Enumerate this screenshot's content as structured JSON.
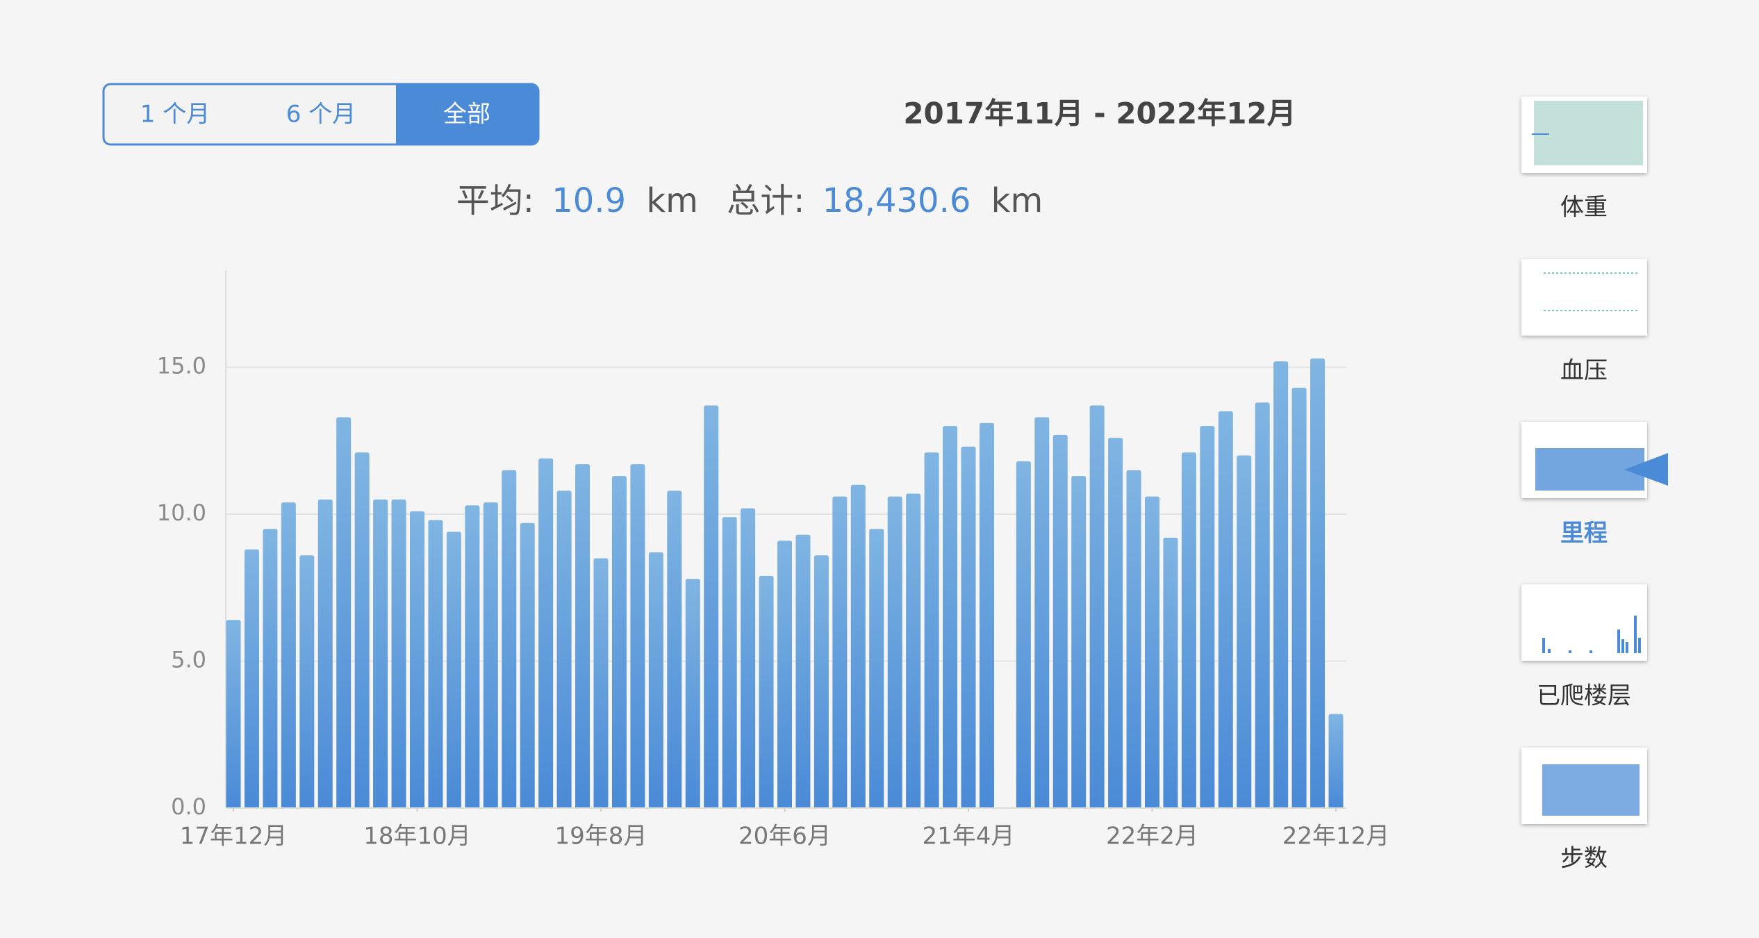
{
  "segmented_control": {
    "options": [
      "1 个月",
      "6 个月",
      "全部"
    ],
    "selected": "全部"
  },
  "date_range": "2017年11月 - 2022年12月",
  "stats": {
    "average_label": "平均:",
    "average": "10.9",
    "total_label": "总计:",
    "total": "18,430.6",
    "unit": "km"
  },
  "sidebar": {
    "items": [
      "体重",
      "血压",
      "里程",
      "已爬楼层",
      "步数"
    ],
    "selected": "里程"
  },
  "chart_data": {
    "type": "bar",
    "categories": [
      "17年12月",
      null,
      null,
      null,
      null,
      null,
      null,
      null,
      null,
      null,
      "18年10月",
      null,
      null,
      null,
      null,
      null,
      null,
      null,
      null,
      null,
      "19年8月",
      null,
      null,
      null,
      null,
      null,
      null,
      null,
      null,
      null,
      "20年6月",
      null,
      null,
      null,
      null,
      null,
      null,
      null,
      null,
      null,
      "21年4月",
      null,
      null,
      null,
      null,
      null,
      null,
      null,
      null,
      null,
      "22年2月",
      null,
      null,
      null,
      null,
      null,
      null,
      null,
      null,
      null,
      "22年12月"
    ],
    "values": [
      6.4,
      8.8,
      9.5,
      10.4,
      8.6,
      10.5,
      13.3,
      12.1,
      10.5,
      10.5,
      10.1,
      9.8,
      9.4,
      10.3,
      10.4,
      11.5,
      9.7,
      11.9,
      10.8,
      11.7,
      8.5,
      11.3,
      11.7,
      8.7,
      10.8,
      7.8,
      13.7,
      9.9,
      10.2,
      7.9,
      9.1,
      9.3,
      8.6,
      10.6,
      11.0,
      9.5,
      10.6,
      10.7,
      12.1,
      13.0,
      12.3,
      13.1,
      null,
      11.8,
      13.3,
      12.7,
      11.3,
      13.7,
      12.6,
      11.5,
      10.6,
      9.2,
      12.1,
      13.0,
      13.5,
      12.0,
      13.8,
      15.2,
      14.3,
      15.3,
      3.2
    ],
    "color": "#4a8ad6",
    "ylim": [
      0,
      18.3
    ],
    "yticks": [
      {
        "value": 0,
        "label": "0.0"
      },
      {
        "value": 5,
        "label": "5.0"
      },
      {
        "value": 10,
        "label": "10.0"
      },
      {
        "value": 15,
        "label": "15.0"
      }
    ],
    "grid": true
  }
}
